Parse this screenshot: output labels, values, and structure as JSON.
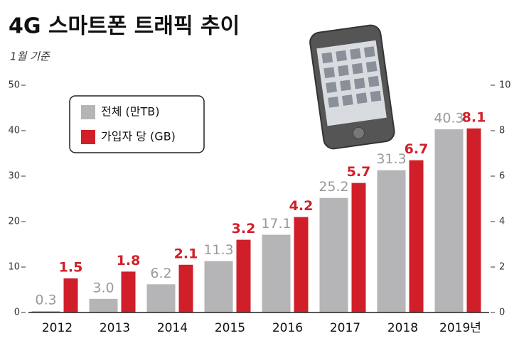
{
  "chart_data": {
    "type": "bar",
    "title": "4G 스마트폰 트래픽 추이",
    "subtitle": "1월 기준",
    "categories": [
      "2012",
      "2013",
      "2014",
      "2015",
      "2016",
      "2017",
      "2018",
      "2019년"
    ],
    "series": [
      {
        "name": "전체 (만TB)",
        "color": "#b5b5b7",
        "values": [
          0.3,
          3.0,
          6.2,
          11.3,
          17.1,
          25.2,
          31.3,
          40.3
        ],
        "value_labels": [
          "0.3",
          "3.0",
          "6.2",
          "11.3",
          "17.1",
          "25.2",
          "31.3",
          "40.3"
        ]
      },
      {
        "name": "가입자 당 (GB)",
        "color": "#d11f2a",
        "axis": "y2",
        "values": [
          1.5,
          1.8,
          2.1,
          3.2,
          4.2,
          5.7,
          6.7,
          8.1
        ]
      }
    ],
    "ylim": [
      0,
      50
    ],
    "yticks": [
      0,
      10,
      20,
      30,
      40,
      50
    ],
    "y2lim": [
      0,
      10
    ],
    "y2ticks": [
      0,
      2,
      4,
      6,
      8,
      10
    ],
    "legend": "upper left"
  }
}
